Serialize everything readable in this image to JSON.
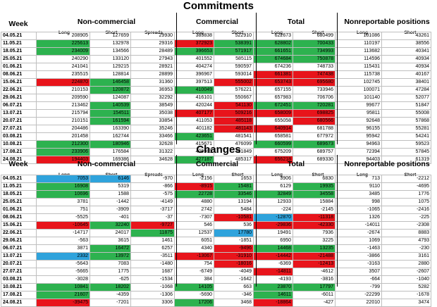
{
  "commitments": {
    "title": "Commitments",
    "headers": {
      "week": "Week",
      "noncommercial": "Non-commercial",
      "commercial": "Commercial",
      "total": "Total",
      "nonreportable": "Nonreportable positions"
    },
    "subheaders": [
      "Long",
      "Short",
      "Spreads",
      "Long",
      "Short",
      "Long",
      "Short",
      "Long",
      "Short"
    ],
    "rows": [
      {
        "date": "04.05.21",
        "v": [
          "208905",
          "127659",
          "29930",
          "383838",
          "522910",
          "622673",
          "680499",
          "101086",
          "43261"
        ],
        "c": [
          "",
          "",
          "",
          "",
          "",
          "",
          "",
          "",
          ""
        ]
      },
      {
        "date": "11.05.21",
        "v": [
          "225613",
          "132978",
          "29316",
          "372923",
          "538391",
          "628802",
          "700433",
          "110197",
          "38556"
        ],
        "c": [
          "g",
          "",
          "",
          "r",
          "g",
          "g",
          "g",
          "",
          ""
        ]
      },
      {
        "date": "18.05.21",
        "v": [
          "234009",
          "134566",
          "28489",
          "396653",
          "571917",
          "661651",
          "734993",
          "113682",
          "40341"
        ],
        "c": [
          "g",
          "",
          "",
          "g",
          "g",
          "g",
          "g",
          "",
          ""
        ]
      },
      {
        "date": "25.05.21",
        "v": [
          "240290",
          "133120",
          "27943",
          "401552",
          "585115",
          "674684",
          "750878",
          "114596",
          "40934"
        ],
        "c": [
          "",
          "",
          "",
          "",
          "",
          "g",
          "g",
          "",
          ""
        ]
      },
      {
        "date": "01.06.21",
        "v": [
          "241041",
          "129215",
          "28921",
          "404274",
          "590597",
          "674236",
          "748733",
          "115431",
          "40934"
        ],
        "c": [
          "",
          "",
          "",
          "",
          "",
          "",
          "",
          "",
          ""
        ]
      },
      {
        "date": "08.06.21",
        "v": [
          "235515",
          "128814",
          "28899",
          "396967",
          "593014",
          "661381",
          "747438",
          "115738",
          "40167"
        ],
        "c": [
          "",
          "",
          "",
          "",
          "",
          "r",
          "r",
          "",
          ""
        ]
      },
      {
        "date": "15.06.21",
        "v": [
          "224870",
          "146458",
          "31360",
          "397513",
          "555002",
          "653743",
          "695680",
          "102745",
          "38401"
        ],
        "c": [
          "r",
          "g",
          "",
          "",
          "r",
          "r",
          "r",
          "",
          ""
        ]
      },
      {
        "date": "22.06.21",
        "v": [
          "210153",
          "120872",
          "36953",
          "410049",
          "576221",
          "657155",
          "733946",
          "100071",
          "47284"
        ],
        "c": [
          "",
          "g",
          "",
          "g",
          "",
          "",
          "",
          "",
          ""
        ]
      },
      {
        "date": "29.06.21",
        "v": [
          "209590",
          "124087",
          "32292",
          "416101",
          "550667",
          "657983",
          "706706",
          "101140",
          "52077"
        ],
        "c": [
          "",
          "",
          "",
          "",
          "",
          "",
          "",
          "",
          ""
        ]
      },
      {
        "date": "06.07.21",
        "v": [
          "213462",
          "140539",
          "38549",
          "420244",
          "541130",
          "672451",
          "720281",
          "99677",
          "51847"
        ],
        "c": [
          "",
          "g",
          "",
          "",
          "r",
          "g",
          "g",
          "",
          ""
        ]
      },
      {
        "date": "13.07.21",
        "v": [
          "215794",
          "154511",
          "35038",
          "407177",
          "509216",
          "658009",
          "698825",
          "95811",
          "55008"
        ],
        "c": [
          "",
          "g",
          "",
          "r",
          "r",
          "r",
          "r",
          "",
          ""
        ]
      },
      {
        "date": "20.07.21",
        "v": [
          "210151",
          "161594",
          "33854",
          "411053",
          "485118",
          "655058",
          "680566",
          "92648",
          "57868"
        ],
        "c": [
          "",
          "g",
          "",
          "",
          "r",
          "",
          "r",
          "",
          ""
        ]
      },
      {
        "date": "27.07.21",
        "v": [
          "204486",
          "163390",
          "35246",
          "401182",
          "481143",
          "640914",
          "681788",
          "96155",
          "55281"
        ],
        "c": [
          "",
          "",
          "",
          "",
          "r",
          "r",
          "",
          "",
          ""
        ]
      },
      {
        "date": "03.08.21",
        "v": [
          "201458",
          "162744",
          "33466",
          "423651",
          "481541",
          "658581",
          "677972",
          "95942",
          "54241"
        ],
        "c": [
          "",
          "",
          "",
          "g",
          "",
          "",
          "",
          "",
          ""
        ]
      },
      {
        "date": "10.08.21",
        "v": [
          "212300",
          "180946",
          "32628",
          "415671",
          "476099",
          "660599",
          "689673",
          "94963",
          "59523"
        ],
        "c": [
          "g",
          "g",
          "",
          "",
          "",
          "g",
          "g",
          "",
          ""
        ]
      },
      {
        "date": "17.08.21",
        "v": [
          "233906",
          "176584",
          "31322",
          "409981",
          "481849",
          "675209",
          "689757",
          "72394",
          "57845"
        ],
        "c": [
          "g",
          "",
          "",
          "",
          "",
          "",
          "",
          "",
          ""
        ]
      },
      {
        "date": "24.08.21",
        "v": [
          "194403",
          "169386",
          "34628",
          "427187",
          "485317",
          "656218",
          "689330",
          "94403",
          "61319"
        ],
        "c": [
          "r",
          "",
          "",
          "g",
          "",
          "r",
          "",
          "",
          ""
        ]
      }
    ]
  },
  "changes": {
    "title": "Changes",
    "headers": {
      "week": "Week",
      "noncommercial": "Non-commercial",
      "commercial": "Commercial",
      "total": "Total",
      "nonreportable": "Nonreportable positions"
    },
    "subheaders": [
      "Long",
      "Short",
      "Spreads",
      "Long",
      "Short",
      "Long",
      "Short",
      "Long",
      "Short"
    ],
    "rows": [
      {
        "date": "04.05.21",
        "v": [
          "7053",
          "6146",
          "-970",
          "-2156",
          "1653",
          "3906",
          "6830",
          "713",
          "-2212"
        ],
        "c": [
          "b",
          "b",
          "",
          "",
          "",
          "",
          "",
          "",
          ""
        ]
      },
      {
        "date": "11.05.21",
        "v": [
          "16908",
          "5319",
          "-866",
          "-8915",
          "15481",
          "6129",
          "19935",
          "9110",
          "-4695"
        ],
        "c": [
          "g",
          "",
          "",
          "r",
          "g",
          "",
          "g",
          "",
          ""
        ]
      },
      {
        "date": "18.05.21",
        "v": [
          "10696",
          "1588",
          "-575",
          "22728",
          "33546",
          "32849",
          "34558",
          "3485",
          "1776"
        ],
        "c": [
          "g",
          "",
          "",
          "g",
          "g",
          "g",
          "g",
          "",
          ""
        ]
      },
      {
        "date": "25.05.21",
        "v": [
          "3781",
          "-1442",
          "-4149",
          "4880",
          "13194",
          "12933",
          "15884",
          "998",
          "1075"
        ],
        "c": [
          "",
          "",
          "",
          "",
          "",
          "",
          "",
          "",
          ""
        ]
      },
      {
        "date": "01.06.21",
        "v": [
          "751",
          "-3909",
          "-3717",
          "2742",
          "5484",
          "-224",
          "-2145",
          "-1065",
          "-2416"
        ],
        "c": [
          "",
          "",
          "",
          "",
          "",
          "",
          "",
          "",
          ""
        ]
      },
      {
        "date": "08.06.21",
        "v": [
          "-5525",
          "-401",
          "-37",
          "-7307",
          "-10581",
          "-12870",
          "-11318",
          "1326",
          "-225"
        ],
        "c": [
          "",
          "",
          "",
          "",
          "r",
          "b",
          "r",
          "",
          ""
        ]
      },
      {
        "date": "15.06.21",
        "v": [
          "-10645",
          "32240",
          "-9727",
          "546",
          "536",
          "-29836",
          "-42330",
          "-14011",
          "-2308"
        ],
        "c": [
          "r",
          "g",
          "r",
          "",
          "",
          "r",
          "r",
          "",
          ""
        ]
      },
      {
        "date": "22.06.21",
        "v": [
          "-14717",
          "24017",
          "11875",
          "12537",
          "17780",
          "19491",
          "7936",
          "-2674",
          "8883"
        ],
        "c": [
          "",
          "",
          "g",
          "",
          "b",
          "",
          "",
          "",
          ""
        ]
      },
      {
        "date": "29.06.21",
        "v": [
          "-563",
          "3615",
          "1461",
          "6051",
          "-1851",
          "6950",
          "3225",
          "1069",
          "4793"
        ],
        "c": [
          "",
          "",
          "",
          "",
          "",
          "",
          "",
          "",
          ""
        ]
      },
      {
        "date": "06.07.21",
        "v": [
          "3871",
          "16472",
          "6257",
          "4340",
          "-9496",
          "14468",
          "13235",
          "-1463",
          "-230"
        ],
        "c": [
          "",
          "g",
          "",
          "",
          "r",
          "g",
          "g",
          "",
          ""
        ]
      },
      {
        "date": "13.07.21",
        "v": [
          "2332",
          "13972",
          "-3511",
          "-13067",
          "-31910",
          "-14442",
          "-21488",
          "-3866",
          "3161"
        ],
        "c": [
          "b",
          "g",
          "",
          "r",
          "r",
          "r",
          "r",
          "",
          ""
        ]
      },
      {
        "date": "20.07.21",
        "v": [
          "-5643",
          "7083",
          "-1480",
          "754",
          "-18016",
          "-6369",
          "-12413",
          "-3163",
          "2880"
        ],
        "c": [
          "",
          "",
          "",
          "",
          "r",
          "",
          "r",
          "",
          ""
        ]
      },
      {
        "date": "27.07.21",
        "v": [
          "-5665",
          "1775",
          "1687",
          "-6749",
          "-4049",
          "-14811",
          "-4612",
          "3507",
          "-2607"
        ],
        "c": [
          "",
          "",
          "",
          "",
          "",
          "r",
          "",
          "",
          ""
        ]
      },
      {
        "date": "03.08.21",
        "v": [
          "-3028",
          "-625",
          "-1534",
          "384",
          "-1642",
          "-4193",
          "-3816",
          "-664",
          "-1040"
        ],
        "c": [
          "",
          "",
          "",
          "",
          "",
          "",
          "",
          "",
          ""
        ]
      },
      {
        "date": "10.08.21",
        "v": [
          "10841",
          "18202",
          "-1068",
          "14105",
          "663",
          "23870",
          "17797",
          "-799",
          "5282"
        ],
        "c": [
          "g",
          "g",
          "",
          "g",
          "",
          "g",
          "g",
          "",
          ""
        ]
      },
      {
        "date": "17.08.21",
        "v": [
          "21607",
          "-4359",
          "-1306",
          "-5690",
          "-346",
          "14611",
          "-6011",
          "-22299",
          "-1678"
        ],
        "c": [
          "g",
          "",
          "",
          "",
          "",
          "g",
          "",
          "",
          ""
        ]
      },
      {
        "date": "24.08.21",
        "v": [
          "-39475",
          "-7201",
          "3306",
          "17206",
          "3468",
          "-18864",
          "-427",
          "22010",
          "3474"
        ],
        "c": [
          "r",
          "",
          "",
          "g",
          "",
          "r",
          "",
          "",
          ""
        ]
      }
    ]
  }
}
